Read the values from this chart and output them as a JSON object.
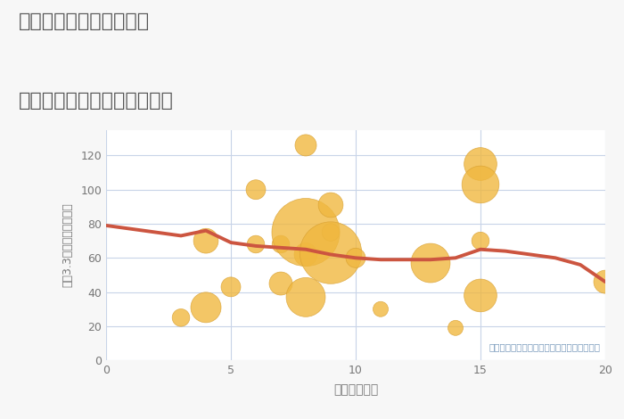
{
  "title_line1": "三重県四日市市尾平町の",
  "title_line2": "駅距離別中古マンション価格",
  "xlabel": "駅距離（分）",
  "ylabel": "坪（3.3㎡）単価（万円）",
  "annotation": "円の大きさは、取引のあった物件面積を示す",
  "background_color": "#f7f7f7",
  "plot_bg_color": "#ffffff",
  "grid_color": "#c8d4e8",
  "bubble_color": "#f0b840",
  "bubble_edge_color": "#d9a030",
  "line_color": "#cc5540",
  "title_color": "#555555",
  "label_color": "#888888",
  "annotation_color": "#7799bb",
  "xlim": [
    0,
    20
  ],
  "ylim": [
    0,
    135
  ],
  "xticks": [
    0,
    5,
    10,
    15,
    20
  ],
  "yticks": [
    0,
    20,
    40,
    60,
    80,
    100,
    120
  ],
  "scatter_x": [
    3,
    4,
    4,
    5,
    6,
    6,
    7,
    7,
    8,
    8,
    8,
    8,
    9,
    9,
    9,
    10,
    11,
    13,
    14,
    15,
    15,
    15,
    15,
    20
  ],
  "scatter_y": [
    25,
    70,
    31,
    43,
    68,
    100,
    68,
    45,
    126,
    62,
    75,
    37,
    91,
    75,
    63,
    60,
    30,
    57,
    19,
    115,
    103,
    70,
    38,
    46
  ],
  "scatter_size": [
    200,
    400,
    600,
    250,
    200,
    250,
    200,
    350,
    300,
    350,
    3000,
    1000,
    400,
    200,
    2500,
    250,
    150,
    1000,
    150,
    700,
    900,
    200,
    700,
    350
  ],
  "line_x": [
    0,
    2,
    3,
    4,
    5,
    6,
    7,
    8,
    9,
    10,
    11,
    12,
    13,
    14,
    15,
    16,
    17,
    18,
    19,
    20
  ],
  "line_y": [
    79,
    75,
    73,
    76,
    69,
    67,
    66,
    65,
    62,
    60,
    59,
    59,
    59,
    60,
    65,
    64,
    62,
    60,
    56,
    46
  ]
}
